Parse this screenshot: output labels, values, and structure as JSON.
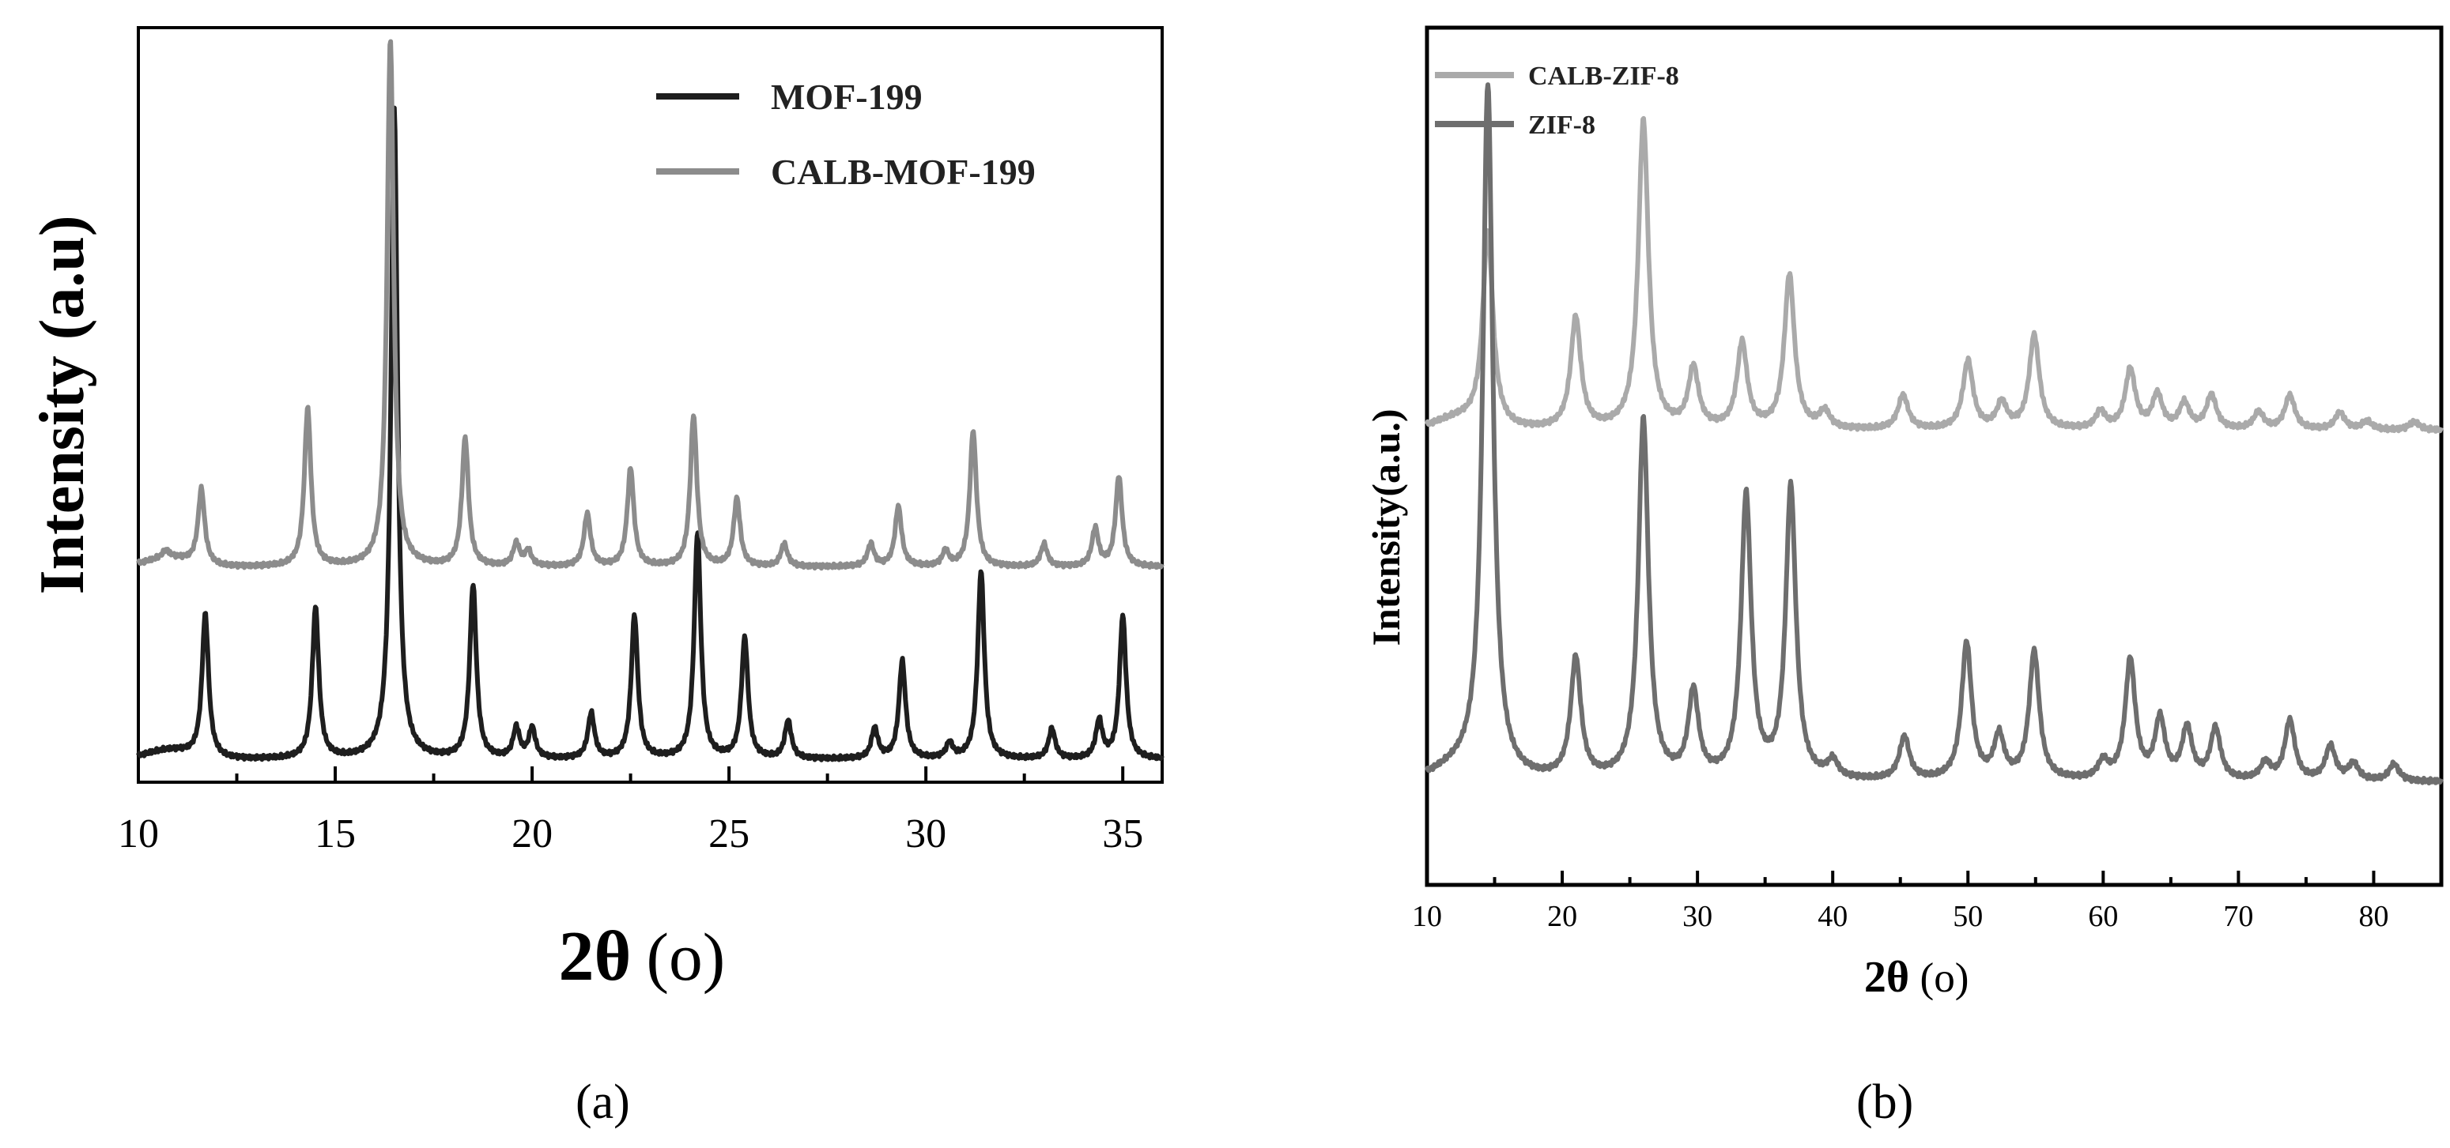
{
  "panels": [
    {
      "caption": "(a)",
      "chart_data": {
        "type": "line",
        "title": "",
        "xlabel": "2θ",
        "xlabel_unit": "(o)",
        "ylabel": "Intensity (a.u)",
        "xlim": [
          10,
          36
        ],
        "ylim": [
          0,
          1
        ],
        "xticks": [
          10,
          15,
          20,
          25,
          30,
          35
        ],
        "yticks_shown": false,
        "grid": false,
        "legend_position": "top-right",
        "series": [
          {
            "name": "MOF-199",
            "color": "#1e1e1e",
            "baseline": 0.03,
            "peaks": [
              [
                11.7,
                0.19
              ],
              [
                14.5,
                0.2
              ],
              [
                16.5,
                0.86
              ],
              [
                18.5,
                0.23
              ],
              [
                19.6,
                0.04
              ],
              [
                20.0,
                0.04
              ],
              [
                21.5,
                0.06
              ],
              [
                22.6,
                0.19
              ],
              [
                24.2,
                0.3
              ],
              [
                25.4,
                0.16
              ],
              [
                26.5,
                0.05
              ],
              [
                28.7,
                0.04
              ],
              [
                29.4,
                0.13
              ],
              [
                30.6,
                0.02
              ],
              [
                31.4,
                0.25
              ],
              [
                33.2,
                0.04
              ],
              [
                34.4,
                0.05
              ],
              [
                35.0,
                0.19
              ]
            ]
          },
          {
            "name": "CALB-MOF-199",
            "color": "#8c8c8c",
            "baseline": 0.285,
            "peaks": [
              [
                10.7,
                0.01
              ],
              [
                11.6,
                0.1
              ],
              [
                14.3,
                0.21
              ],
              [
                16.4,
                0.7
              ],
              [
                18.3,
                0.17
              ],
              [
                19.6,
                0.03
              ],
              [
                19.9,
                0.02
              ],
              [
                21.4,
                0.07
              ],
              [
                22.5,
                0.13
              ],
              [
                24.1,
                0.2
              ],
              [
                25.2,
                0.09
              ],
              [
                26.4,
                0.03
              ],
              [
                28.6,
                0.03
              ],
              [
                29.3,
                0.08
              ],
              [
                30.5,
                0.02
              ],
              [
                31.2,
                0.18
              ],
              [
                33.0,
                0.03
              ],
              [
                34.3,
                0.05
              ],
              [
                34.9,
                0.12
              ]
            ]
          }
        ]
      }
    },
    {
      "caption": "(b)",
      "chart_data": {
        "type": "line",
        "title": "",
        "xlabel": "2θ",
        "xlabel_unit": "(o)",
        "ylabel": "Intensity(a.u.)",
        "xlim": [
          10,
          85
        ],
        "ylim": [
          0,
          1
        ],
        "xticks": [
          10,
          20,
          30,
          40,
          50,
          60,
          70,
          80
        ],
        "yticks_shown": false,
        "grid": false,
        "legend_position": "top-left",
        "series": [
          {
            "name": "CALB-ZIF-8",
            "color": "#aaaaaa",
            "baseline": 0.53,
            "peaks": [
              [
                14.5,
                0.23
              ],
              [
                21.0,
                0.13
              ],
              [
                26.0,
                0.36
              ],
              [
                29.7,
                0.07
              ],
              [
                33.3,
                0.1
              ],
              [
                36.8,
                0.18
              ],
              [
                39.4,
                0.02
              ],
              [
                45.2,
                0.04
              ],
              [
                50.0,
                0.08
              ],
              [
                52.5,
                0.03
              ],
              [
                54.9,
                0.11
              ],
              [
                59.8,
                0.02
              ],
              [
                62.0,
                0.07
              ],
              [
                64.0,
                0.04
              ],
              [
                66.0,
                0.03
              ],
              [
                68.0,
                0.04
              ],
              [
                71.5,
                0.02
              ],
              [
                73.8,
                0.04
              ],
              [
                77.5,
                0.02
              ],
              [
                79.5,
                0.01
              ],
              [
                83.0,
                0.01
              ]
            ]
          },
          {
            "name": "ZIF-8",
            "color": "#6e6e6e",
            "baseline": 0.12,
            "peaks": [
              [
                14.5,
                0.81
              ],
              [
                21.0,
                0.14
              ],
              [
                26.0,
                0.42
              ],
              [
                29.7,
                0.1
              ],
              [
                33.6,
                0.33
              ],
              [
                36.9,
                0.34
              ],
              [
                40.0,
                0.02
              ],
              [
                45.3,
                0.05
              ],
              [
                49.9,
                0.16
              ],
              [
                52.3,
                0.05
              ],
              [
                54.9,
                0.15
              ],
              [
                60.0,
                0.02
              ],
              [
                62.0,
                0.14
              ],
              [
                64.2,
                0.07
              ],
              [
                66.2,
                0.06
              ],
              [
                68.3,
                0.06
              ],
              [
                72.0,
                0.02
              ],
              [
                73.8,
                0.07
              ],
              [
                76.8,
                0.04
              ],
              [
                78.5,
                0.02
              ],
              [
                81.5,
                0.02
              ]
            ]
          }
        ]
      }
    }
  ]
}
